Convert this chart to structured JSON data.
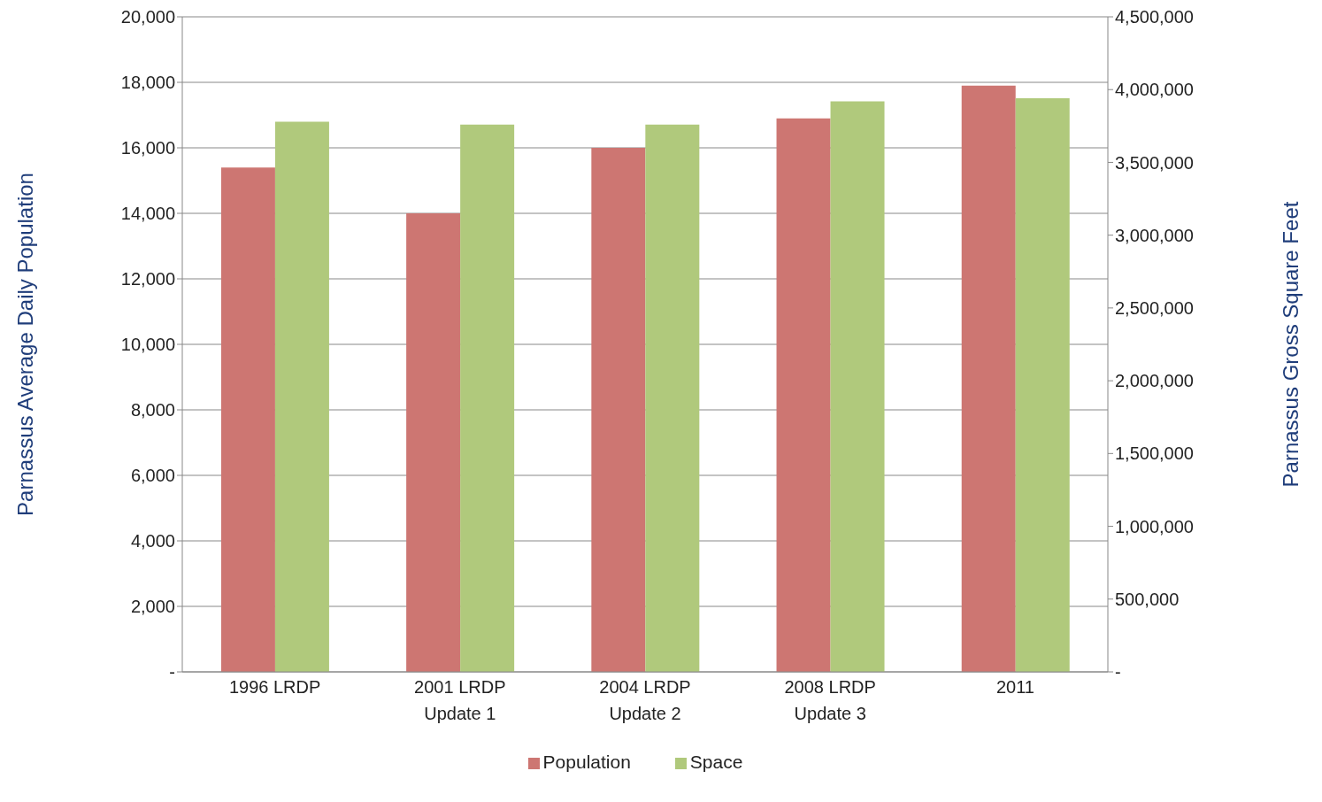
{
  "chart_data": {
    "type": "bar",
    "categories": [
      "1996 LRDP",
      "2001 LRDP\nUpdate 1",
      "2004 LRDP\nUpdate 2",
      "2008 LRDP\nUpdate 3",
      "2011"
    ],
    "ylabel": "Parnassus Average Daily Population",
    "y2label": "Parnassus Gross Square Feet",
    "series": [
      {
        "name": "Population",
        "color": "#cd7672",
        "values": [
          15400,
          14000,
          16000,
          16900,
          17900
        ]
      },
      {
        "name": "Space",
        "color": "#b0c97c",
        "axis": "y2",
        "values": [
          3780000,
          3760000,
          3760000,
          3920000,
          3940000
        ]
      }
    ],
    "ylim": [
      0,
      20000
    ],
    "yticks": [
      {
        "value": 0,
        "label": "-"
      },
      {
        "value": 2000,
        "label": "2,000"
      },
      {
        "value": 4000,
        "label": "4,000"
      },
      {
        "value": 6000,
        "label": "6,000"
      },
      {
        "value": 8000,
        "label": "8,000"
      },
      {
        "value": 10000,
        "label": "10,000"
      },
      {
        "value": 12000,
        "label": "12,000"
      },
      {
        "value": 14000,
        "label": "14,000"
      },
      {
        "value": 16000,
        "label": "16,000"
      },
      {
        "value": 18000,
        "label": "18,000"
      },
      {
        "value": 20000,
        "label": "20,000"
      }
    ],
    "y2lim": [
      0,
      4500000
    ],
    "y2ticks": [
      {
        "value": 0,
        "label": "-"
      },
      {
        "value": 500000,
        "label": "500,000"
      },
      {
        "value": 1000000,
        "label": "1,000,000"
      },
      {
        "value": 1500000,
        "label": "1,500,000"
      },
      {
        "value": 2000000,
        "label": "2,000,000"
      },
      {
        "value": 2500000,
        "label": "2,500,000"
      },
      {
        "value": 3000000,
        "label": "3,000,000"
      },
      {
        "value": 3500000,
        "label": "3,500,000"
      },
      {
        "value": 4000000,
        "label": "4,000,000"
      },
      {
        "value": 4500000,
        "label": "4,500,000"
      }
    ],
    "grid": "y",
    "legend": "bottom"
  }
}
